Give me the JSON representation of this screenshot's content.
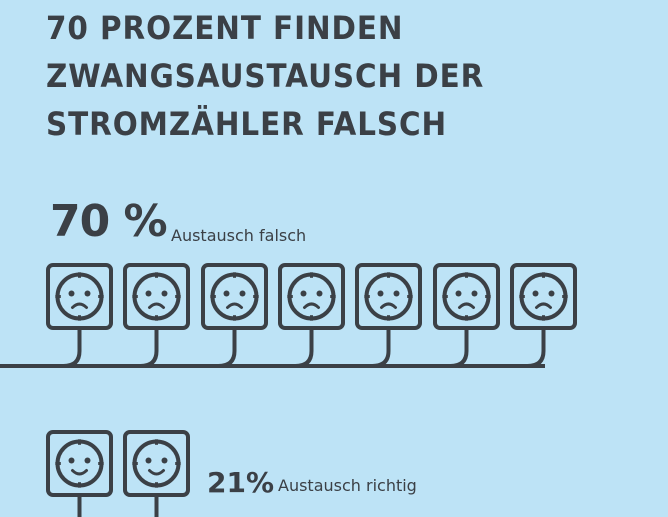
{
  "title": {
    "lines": [
      "70 PROZENT FINDEN",
      "ZWANGSAUSTAUSCH DER",
      "STROMZÄHLER FALSCH"
    ]
  },
  "groups": [
    {
      "percent": "70 %",
      "label": "Austausch falsch",
      "value": 70,
      "icons_shown": 7,
      "mood": "sad"
    },
    {
      "percent": "21%",
      "label": "Austausch richtig",
      "value": 21,
      "icons_shown": 2,
      "mood": "happy"
    }
  ],
  "colors": {
    "background": "#bde3f6",
    "ink": "#3b4046"
  }
}
